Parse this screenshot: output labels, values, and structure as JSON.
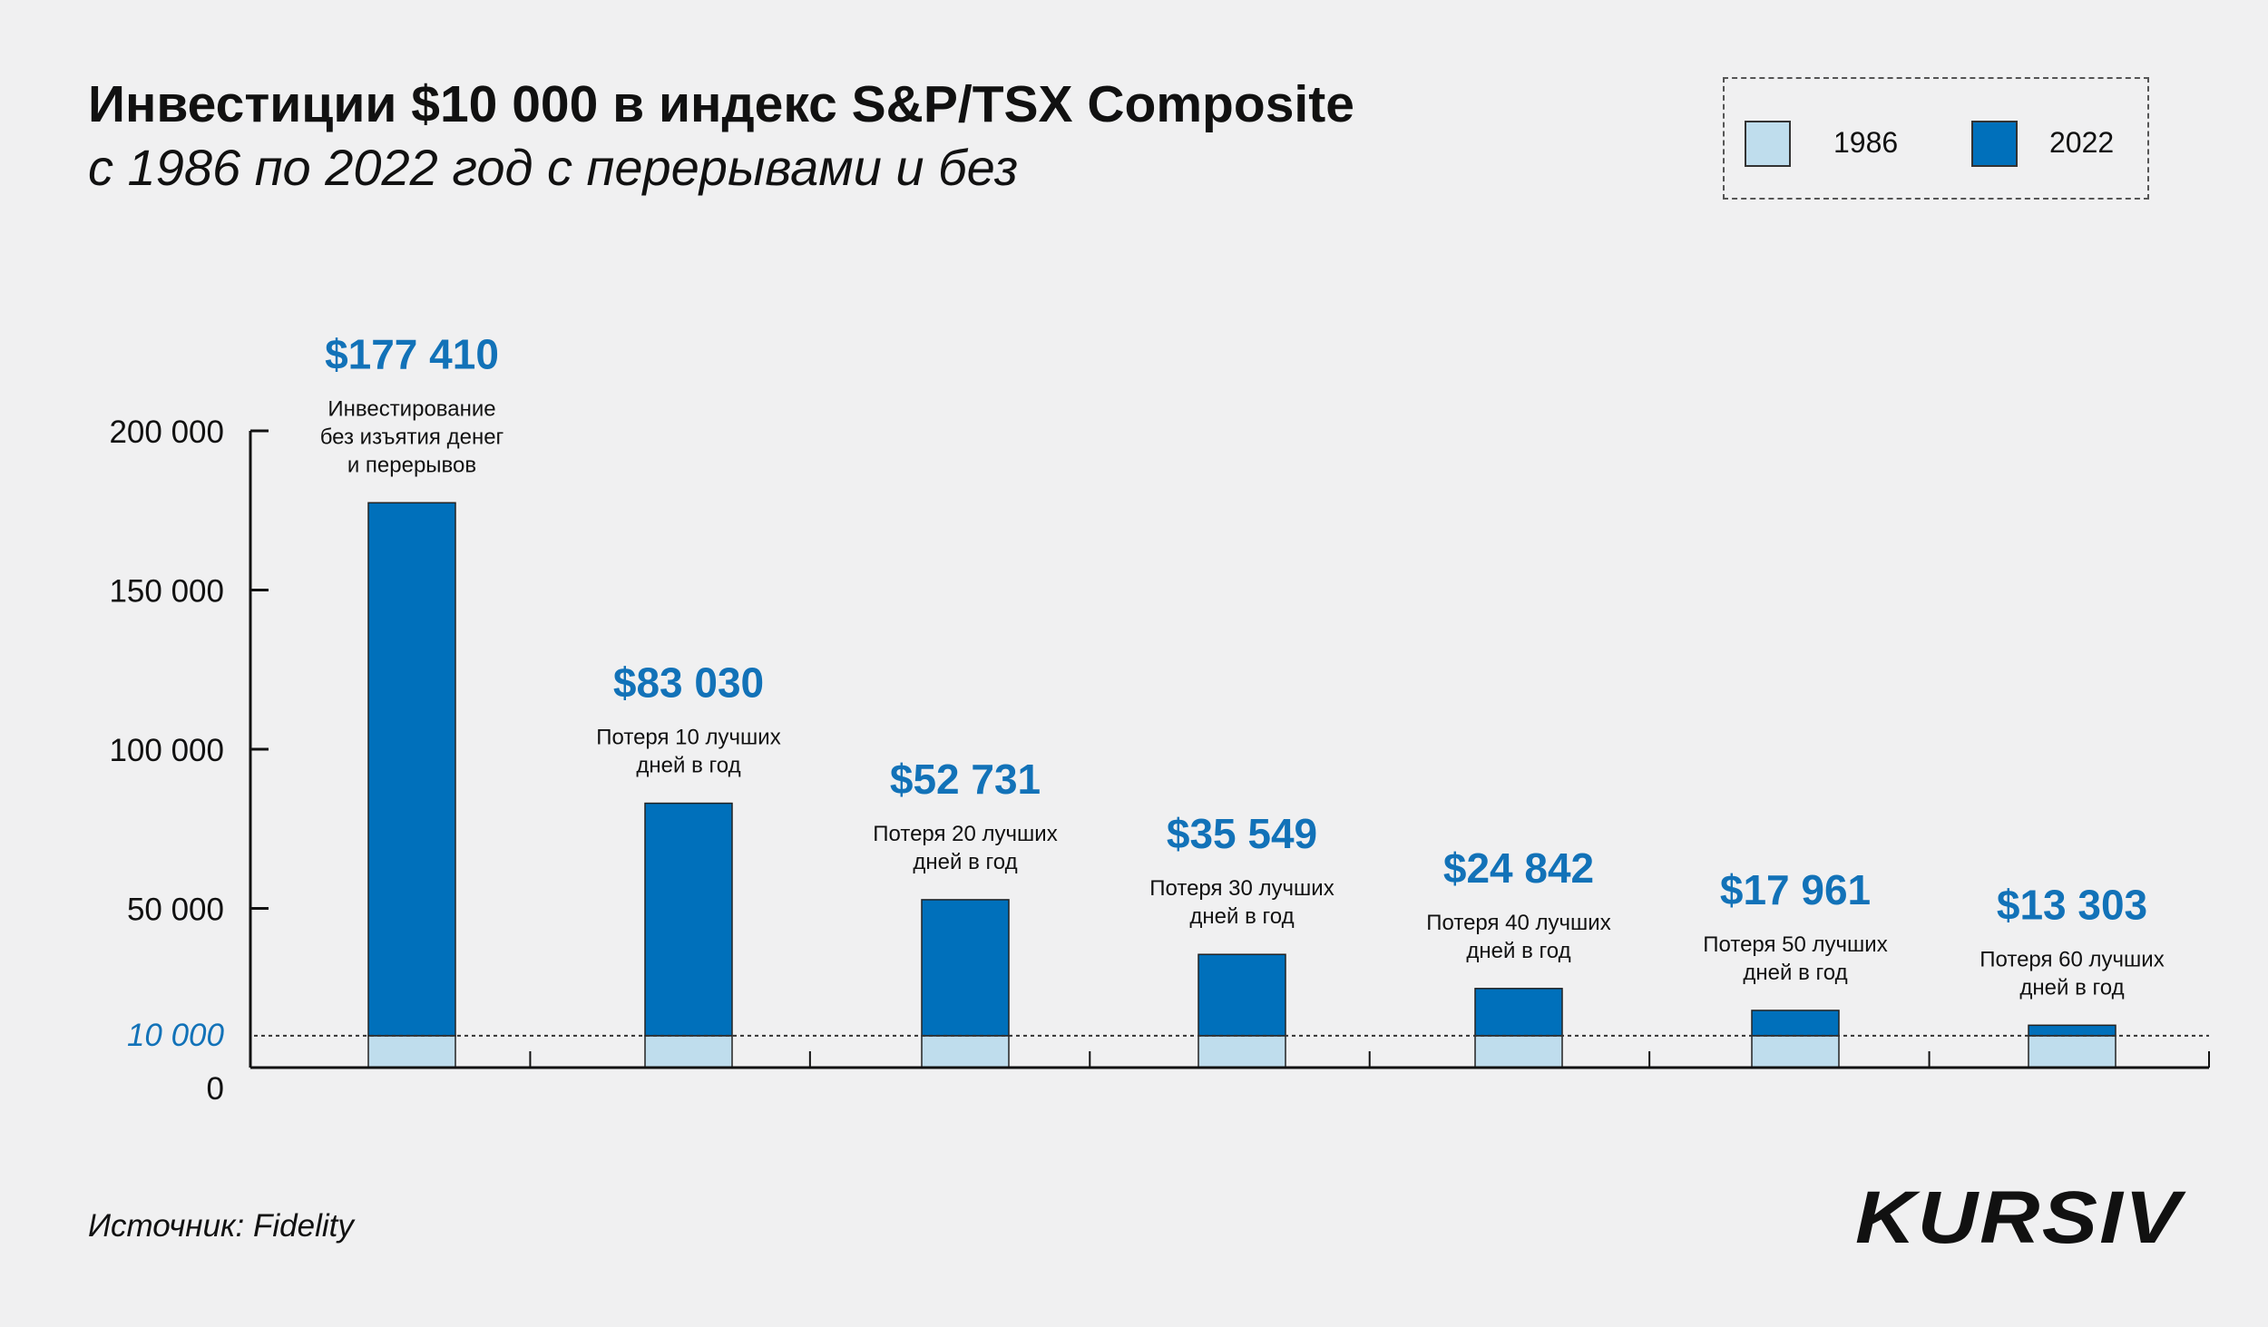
{
  "title": "Инвестиции $10 000 в индекс S&P/TSX Composite",
  "subtitle": "с 1986 по 2022 год с перерывами и без",
  "source": "Источник: Fidelity",
  "logo": "KURSIV",
  "colors": {
    "start": "#bfdded",
    "end": "#0070bb",
    "value_text": "#1272b8",
    "background": "#f0f0f1"
  },
  "chart_data": {
    "type": "bar",
    "title": "Инвестиции $10 000 в индекс S&P/TSX Composite",
    "legend": {
      "position": "top-right",
      "entries": [
        "1986",
        "2022"
      ]
    },
    "ylim": [
      0,
      200000
    ],
    "yticks": [
      {
        "value": 0,
        "label": "0"
      },
      {
        "value": 50000,
        "label": "50 000"
      },
      {
        "value": 100000,
        "label": "100 000"
      },
      {
        "value": 150000,
        "label": "150 000"
      },
      {
        "value": 200000,
        "label": "200 000"
      }
    ],
    "reference_line": {
      "value": 10000,
      "label": "10 000"
    },
    "categories": [
      [
        "Инвестирование",
        "без изъятия денег",
        "и перерывов"
      ],
      [
        "Потеря 10 лучших",
        "дней в год"
      ],
      [
        "Потеря 20 лучших",
        "дней в год"
      ],
      [
        "Потеря 30 лучших",
        "дней в год"
      ],
      [
        "Потеря 40 лучших",
        "дней в год"
      ],
      [
        "Потеря 50 лучших",
        "дней в год"
      ],
      [
        "Потеря 60 лучших",
        "дней в год"
      ]
    ],
    "series": [
      {
        "name": "1986",
        "values": [
          10000,
          10000,
          10000,
          10000,
          10000,
          10000,
          10000
        ]
      },
      {
        "name": "2022",
        "values": [
          177410,
          83030,
          52731,
          35549,
          24842,
          17961,
          13303
        ]
      }
    ],
    "value_labels": [
      "$177 410",
      "$83 030",
      "$52 731",
      "$35 549",
      "$24 842",
      "$17 961",
      "$13 303"
    ]
  }
}
